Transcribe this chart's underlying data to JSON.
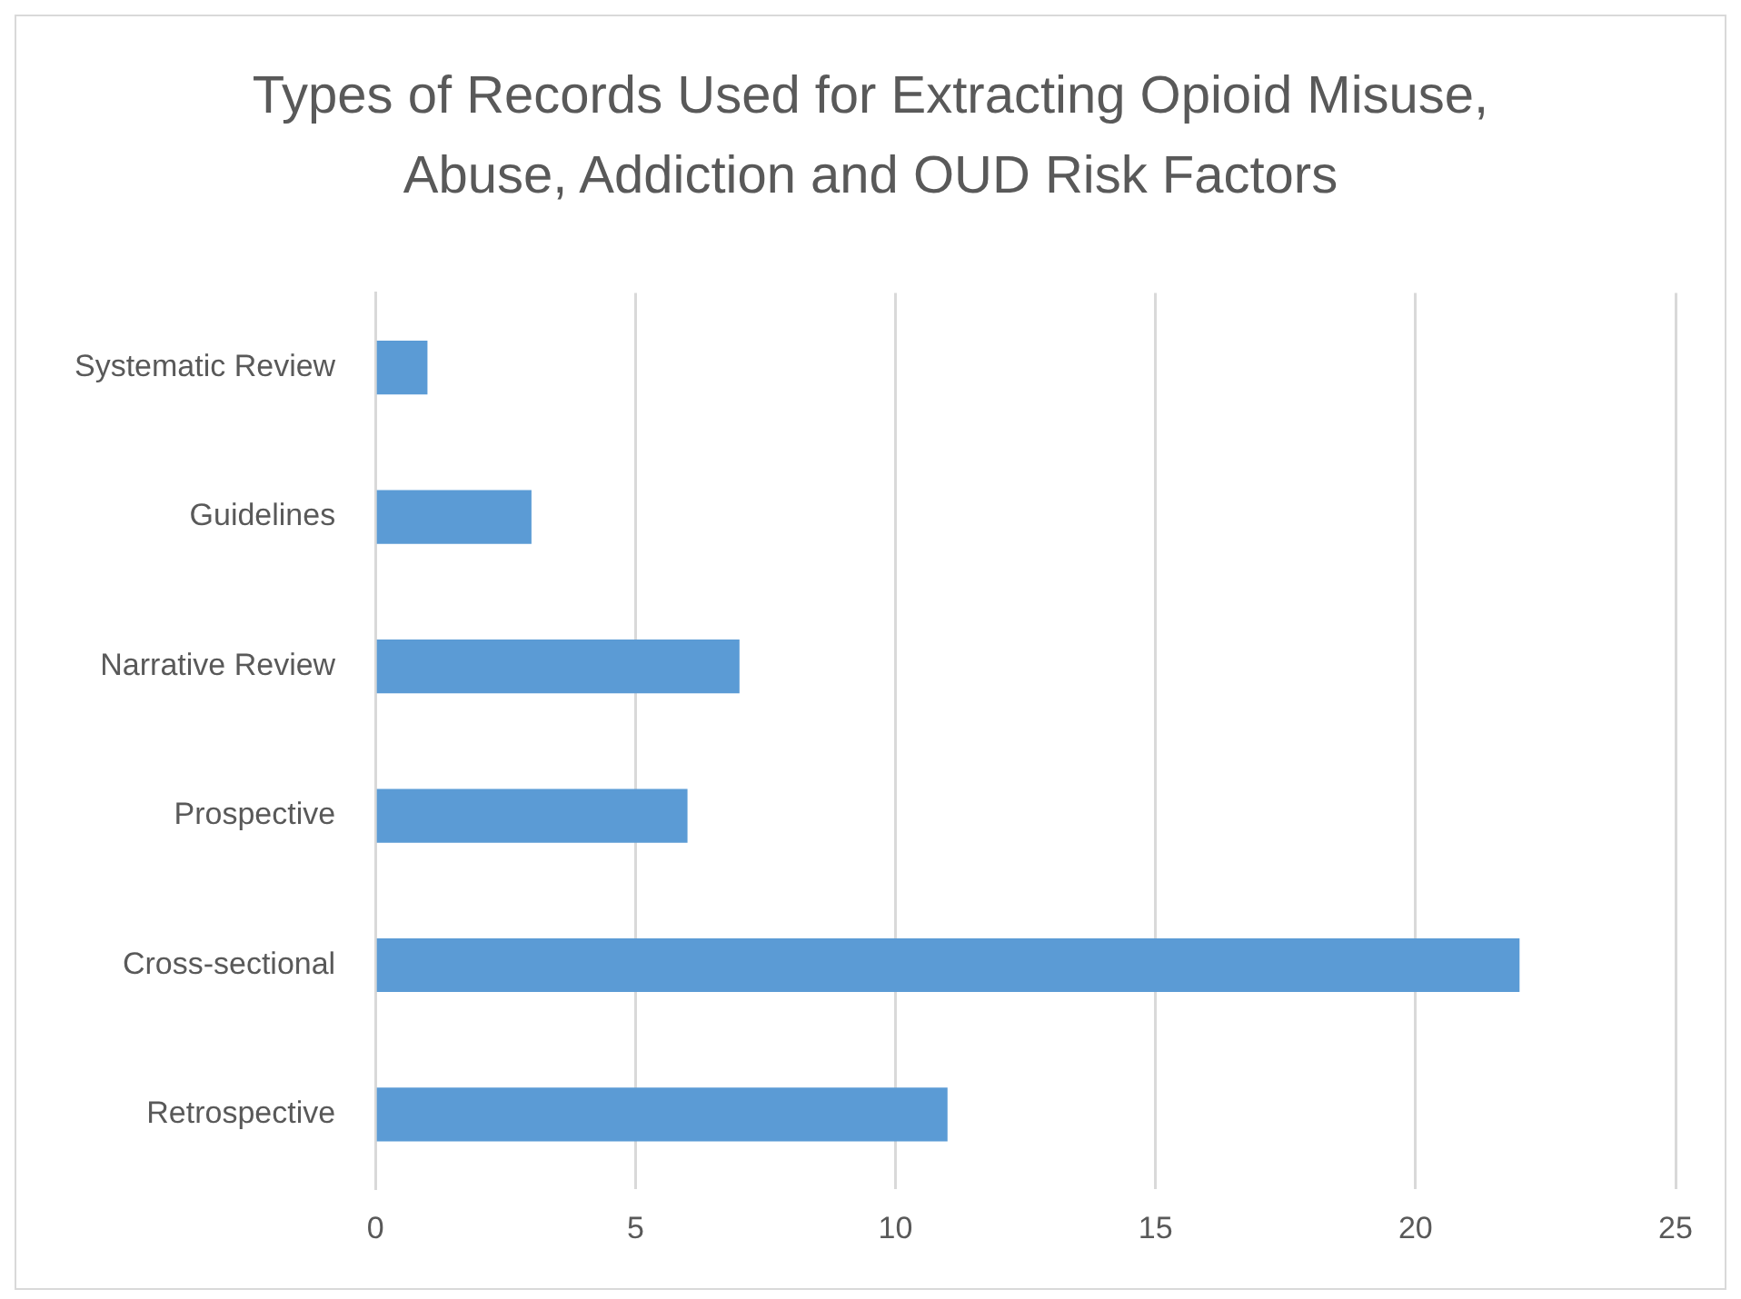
{
  "chart_data": {
    "type": "bar",
    "orientation": "horizontal",
    "title": "Types of Records Used for Extracting Opioid Misuse, Abuse, Addiction and OUD Risk Factors",
    "categories": [
      "Systematic Review",
      "Guidelines",
      "Narrative Review",
      "Prospective",
      "Cross-sectional",
      "Retrospective"
    ],
    "values": [
      1,
      3,
      7,
      6,
      22,
      11
    ],
    "color": "#5b9bd5",
    "xlim": [
      0,
      25
    ],
    "xticks": [
      0,
      5,
      10,
      15,
      20,
      25
    ],
    "grid": "x",
    "legend": false
  }
}
